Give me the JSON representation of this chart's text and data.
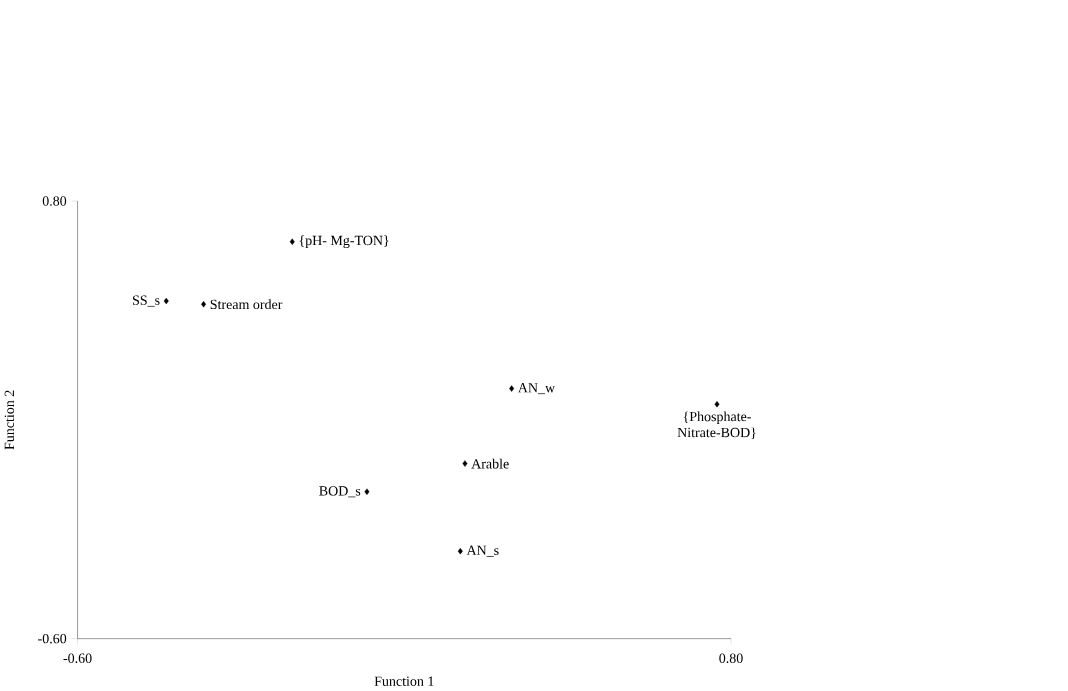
{
  "chart_data": {
    "type": "scatter",
    "xlabel": "Function 1",
    "ylabel": "Function 2",
    "x": [
      -0.14,
      -0.41,
      -0.33,
      0.33,
      0.77,
      0.23,
      0.02,
      0.22
    ],
    "values": [
      0.67,
      0.48,
      0.47,
      0.2,
      0.15,
      -0.04,
      -0.13,
      -0.32
    ],
    "color": "#000000",
    "marker": "diamond",
    "grid": false,
    "xlim": [
      -0.6,
      0.8
    ],
    "ylim": [
      -0.6,
      0.8
    ],
    "xticks": [
      {
        "value": -0.6,
        "label": "-0.60"
      },
      {
        "value": 0.8,
        "label": "0.80"
      }
    ],
    "yticks": [
      {
        "value": -0.6,
        "label": "-0.60"
      },
      {
        "value": 0.8,
        "label": "0.80"
      }
    ],
    "annotations": [
      {
        "text": "{pH- Mg-TON}",
        "x": -0.14,
        "y": 0.67
      },
      {
        "text": "SS_s",
        "x": -0.41,
        "y": 0.48
      },
      {
        "text": "Stream order",
        "x": -0.33,
        "y": 0.47
      },
      {
        "text": "AN_w",
        "x": 0.33,
        "y": 0.2
      },
      {
        "text": "{Phosphate-Nitrate-BOD}",
        "x": 0.77,
        "y": 0.15
      },
      {
        "text": "Arable",
        "x": 0.23,
        "y": -0.04
      },
      {
        "text": "BOD_s",
        "x": 0.02,
        "y": -0.13
      },
      {
        "text": "AN_s",
        "x": 0.22,
        "y": -0.32
      }
    ]
  }
}
